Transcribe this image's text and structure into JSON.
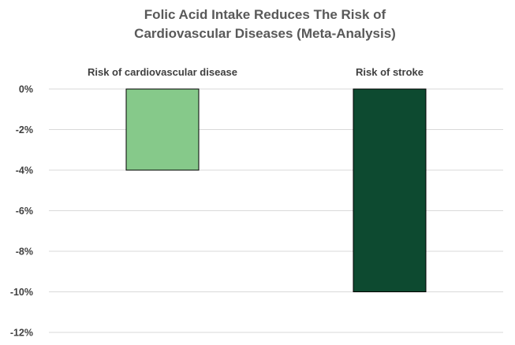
{
  "chart_data": {
    "type": "bar",
    "title_lines": [
      "Folic Acid Intake Reduces The Risk of",
      "Cardiovascular Diseases (Meta-Analysis)"
    ],
    "categories": [
      "Risk of cardiovascular disease",
      "Risk of stroke"
    ],
    "values": [
      -4,
      -10
    ],
    "value_unit": "%",
    "bar_colors": [
      "#86c98a",
      "#0d4a30"
    ],
    "bar_outline_color": "#000000",
    "ylim": [
      -12,
      0
    ],
    "yticks": [
      0,
      -2,
      -4,
      -6,
      -8,
      -10,
      -12
    ],
    "ytick_labels": [
      "0%",
      "-2%",
      "-4%",
      "-6%",
      "-8%",
      "-10%",
      "-12%"
    ],
    "category_label_position": "top",
    "grid": true,
    "legend": false
  }
}
